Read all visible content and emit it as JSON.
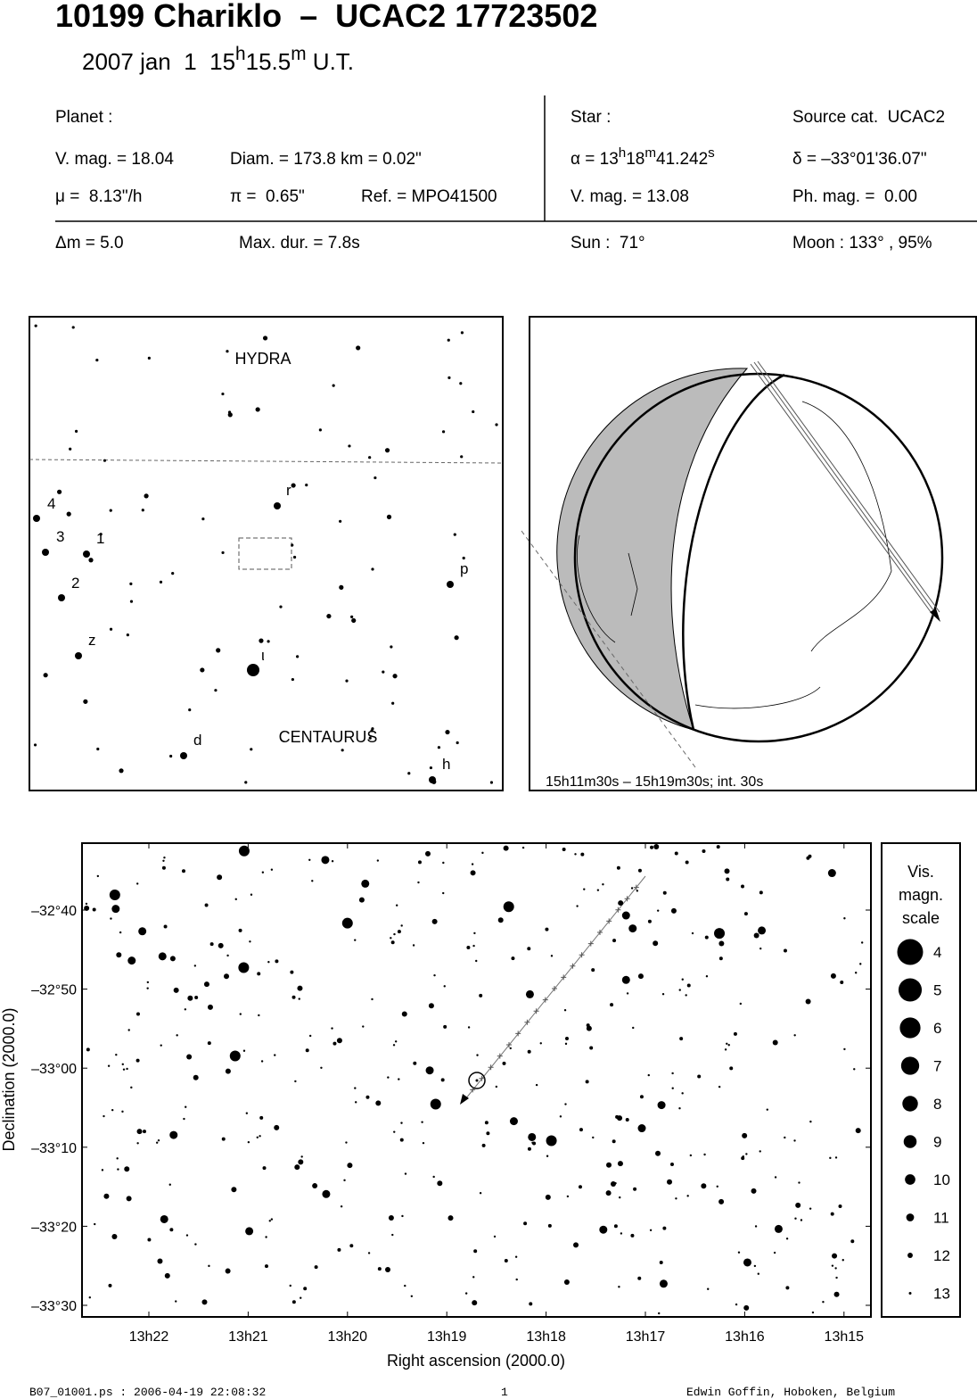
{
  "header": {
    "title": "10199 Chariklo  –  UCAC2 17723502",
    "date": [
      "2007 jan  1  15",
      "h",
      "15.5",
      "m",
      " U.T."
    ]
  },
  "planet": {
    "heading": "Planet :",
    "vmag": "V. mag. = 18.04",
    "diam": "Diam. = 173.8 km = 0.02\"",
    "mu": "μ =  8.13\"/h",
    "pi": "π =  0.65\"",
    "ref": "Ref. = MPO41500"
  },
  "star": {
    "heading": "Star :",
    "source": "Source cat.  UCAC2",
    "alpha": [
      "α = 13",
      "h",
      "18",
      "m",
      "41.242",
      "s"
    ],
    "delta": "δ = –33°01'36.07\"",
    "vmag": "V. mag. = 13.08",
    "phmag": "Ph. mag. =  0.00"
  },
  "event": {
    "dm": "Δm = 5.0",
    "maxdur": "Max. dur. = 7.8s",
    "sun": "Sun :  71°",
    "moon": "Moon : 133° , 95%"
  },
  "finder": {
    "constellations": [
      "HYDRA",
      "CENTAURUS"
    ],
    "star_labels": [
      "4",
      "3",
      "1",
      "2",
      "z",
      "r",
      "p",
      "ι",
      "d",
      "h"
    ]
  },
  "map": {
    "caption": "15h11m30s – 15h19m30s; int. 30s"
  },
  "star_chart": {
    "xticks": [
      "13h22",
      "13h21",
      "13h20",
      "13h19",
      "13h18",
      "13h17",
      "13h16",
      "13h15"
    ],
    "yticks": [
      "–32°40",
      "–32°50",
      "–33°00",
      "–33°10",
      "–33°20",
      "–33°30"
    ],
    "xlabel": "Right ascension (2000.0)",
    "ylabel": "Declination (2000.0)"
  },
  "legend": {
    "title": [
      "Vis.",
      "magn.",
      "scale"
    ],
    "magnitudes": [
      4,
      5,
      6,
      7,
      8,
      9,
      10,
      11,
      12,
      13
    ]
  },
  "footer": {
    "file": "B07_01001.ps : 2006-04-19 22:08:32",
    "page": "1",
    "author": "Edwin Goffin, Hoboken, Belgium"
  }
}
